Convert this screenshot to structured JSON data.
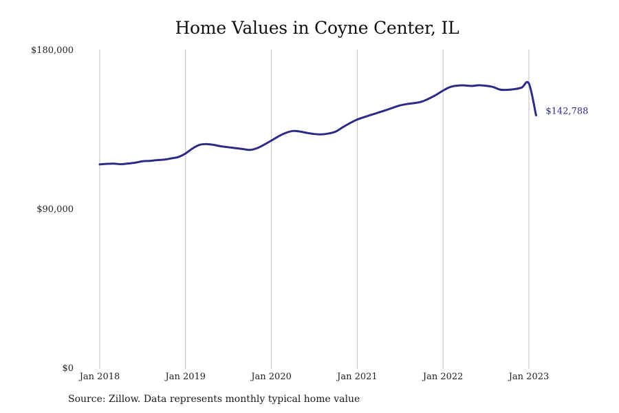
{
  "chart_data": {
    "type": "line",
    "title": "Home Values in Coyne Center, IL",
    "xlabel": "",
    "ylabel": "",
    "ylim": [
      0,
      180000
    ],
    "y_ticks": [
      0,
      90000,
      180000
    ],
    "y_tick_labels": [
      "$0",
      "$90,000",
      "$180,000"
    ],
    "x_ticks": [
      "2018-01",
      "2019-01",
      "2020-01",
      "2021-01",
      "2022-01",
      "2023-01"
    ],
    "x_tick_labels": [
      "Jan 2018",
      "Jan 2019",
      "Jan 2020",
      "Jan 2021",
      "Jan 2022",
      "Jan 2023"
    ],
    "grid": "vertical",
    "line_color": "#2e2a86",
    "end_label": "$142,788",
    "series": [
      {
        "x": [
          "2018-01",
          "2018-02",
          "2018-03",
          "2018-04",
          "2018-05",
          "2018-06",
          "2018-07",
          "2018-08",
          "2018-09",
          "2018-10",
          "2018-11",
          "2018-12",
          "2019-01",
          "2019-02",
          "2019-03",
          "2019-04",
          "2019-05",
          "2019-06",
          "2019-07",
          "2019-08",
          "2019-09",
          "2019-10",
          "2019-11",
          "2019-12",
          "2020-01",
          "2020-02",
          "2020-03",
          "2020-04",
          "2020-05",
          "2020-06",
          "2020-07",
          "2020-08",
          "2020-09",
          "2020-10",
          "2020-11",
          "2020-12",
          "2021-01",
          "2021-02",
          "2021-03",
          "2021-04",
          "2021-05",
          "2021-06",
          "2021-07",
          "2021-08",
          "2021-09",
          "2021-10",
          "2021-11",
          "2021-12",
          "2022-01",
          "2022-02",
          "2022-03",
          "2022-04",
          "2022-05",
          "2022-06",
          "2022-07",
          "2022-08",
          "2022-09",
          "2022-10",
          "2022-11",
          "2022-12",
          "2023-01",
          "2023-02"
        ],
        "y": [
          115000,
          115300,
          115400,
          115100,
          115500,
          116000,
          116800,
          117000,
          117400,
          117700,
          118400,
          119200,
          121200,
          124100,
          126100,
          126500,
          126000,
          125200,
          124700,
          124200,
          123700,
          123200,
          124200,
          126200,
          128500,
          130900,
          132800,
          133900,
          133600,
          132800,
          132200,
          132000,
          132500,
          133600,
          136100,
          138400,
          140400,
          141800,
          143100,
          144400,
          145700,
          147100,
          148400,
          149200,
          149700,
          150500,
          152200,
          154300,
          156800,
          158800,
          159600,
          159700,
          159400,
          159800,
          159500,
          158800,
          157300,
          157200,
          157600,
          158500,
          160800,
          142788
        ]
      }
    ]
  },
  "source": "Source: Zillow. Data represents monthly typical home value"
}
